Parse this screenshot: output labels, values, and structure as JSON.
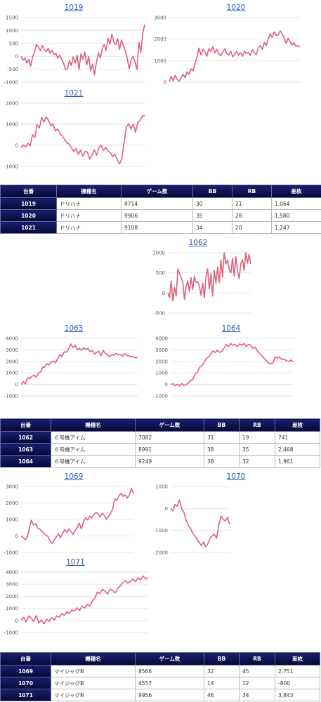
{
  "colors": {
    "line": "#e0607a",
    "header_bg": "#0d1250",
    "title_link": "#2a5db0",
    "negative": "#d11a1a"
  },
  "groups": [
    {
      "charts": [
        {
          "chart_data": {
            "type": "line",
            "title": "1019",
            "ylim": [
              -1000,
              1500
            ],
            "yticks": [
              -1000,
              -500,
              0,
              500,
              1000,
              1500
            ],
            "values": [
              0,
              -150,
              -60,
              -260,
              -120,
              -380,
              -20,
              180,
              460,
              360,
              210,
              420,
              260,
              180,
              310,
              120,
              240,
              70,
              120,
              -80,
              50,
              -120,
              -260,
              -520,
              -480,
              -160,
              -360,
              -20,
              -260,
              40,
              -500,
              100,
              -120,
              160,
              -340,
              0,
              -560,
              -300,
              -720,
              -220,
              130,
              -60,
              290,
              460,
              220,
              700,
              470,
              860,
              560,
              460,
              680,
              270,
              640,
              400,
              200,
              -100,
              -480,
              -130,
              0,
              -220,
              -520,
              540,
              140,
              900,
              1230
            ]
          }
        },
        {
          "chart_data": {
            "type": "line",
            "title": "1020",
            "ylim": [
              0,
              3000
            ],
            "yticks": [
              0,
              1000,
              2000,
              3000
            ],
            "values": [
              20,
              260,
              60,
              320,
              120,
              50,
              200,
              370,
              210,
              480,
              370,
              620,
              520,
              860,
              1160,
              1580,
              1260,
              1540,
              1400,
              1200,
              1560,
              1420,
              1640,
              1360,
              1520,
              1310,
              1220,
              1410,
              1550,
              1340,
              1250,
              1440,
              1180,
              1290,
              1420,
              1260,
              1370,
              1200,
              1440,
              1320,
              1380,
              1240,
              1510,
              1360,
              1280,
              1600,
              1700,
              1520,
              1840,
              1700,
              2010,
              2250,
              2080,
              2330,
              2160,
              2190,
              2380,
              2260,
              2050,
              1800,
              2040,
              1880,
              1720,
              1840,
              1660,
              1700,
              1620
            ]
          }
        },
        {
          "chart_data": {
            "type": "line",
            "title": "1021",
            "ylim": [
              -1000,
              2000
            ],
            "yticks": [
              -1000,
              0,
              1000,
              2000
            ],
            "values": [
              -120,
              20,
              -80,
              100,
              -20,
              500,
              380,
              980,
              820,
              1320,
              1100,
              1350,
              1190,
              920,
              1020,
              680,
              780,
              560,
              440,
              290,
              120,
              60,
              -120,
              -300,
              -150,
              -430,
              -220,
              -520,
              -280,
              -330,
              -660,
              -460,
              -210,
              -470,
              -110,
              0,
              -250,
              -100,
              -280,
              -350,
              -540,
              -420,
              -680,
              -880,
              -640,
              140,
              880,
              1020,
              780,
              1010,
              620,
              1100,
              1180,
              1380,
              1420
            ]
          }
        }
      ],
      "table": {
        "headers": [
          "台番",
          "機種名",
          "ゲーム数",
          "BB",
          "RB",
          "差枚"
        ],
        "rows": [
          {
            "id": "1019",
            "machine": "ドリハナ",
            "games": "8714",
            "bb": "30",
            "rb": "21",
            "diff": "1,064",
            "negative": false
          },
          {
            "id": "1020",
            "machine": "ドリハナ",
            "games": "9906",
            "bb": "35",
            "rb": "28",
            "diff": "1,580",
            "negative": false
          },
          {
            "id": "1021",
            "machine": "ドリハナ",
            "games": "9108",
            "bb": "34",
            "rb": "20",
            "diff": "1,247",
            "negative": false
          }
        ]
      }
    },
    {
      "charts": [
        {
          "chart_data": {
            "type": "line",
            "title": "1062",
            "ylim": [
              -500,
              1000
            ],
            "yticks": [
              -500,
              0,
              500,
              1000
            ],
            "values": [
              0,
              -120,
              300,
              -200,
              140,
              -80,
              600,
              480,
              380,
              280,
              -160,
              160,
              300,
              40,
              380,
              80,
              420,
              260,
              280,
              180,
              -60,
              240,
              -120,
              400,
              600,
              100,
              480,
              -80,
              560,
              240,
              640,
              260,
              820,
              400,
              1000,
              720,
              820,
              580,
              500,
              860,
              420,
              900,
              540,
              360,
              720,
              820,
              560,
              1000,
              740,
              960,
              720
            ]
          }
        },
        {
          "chart_data": {
            "type": "line",
            "title": "1063",
            "ylim": [
              -1000,
              4000
            ],
            "yticks": [
              -1000,
              0,
              1000,
              2000,
              3000,
              4000
            ],
            "values": [
              0,
              240,
              50,
              580,
              500,
              700,
              820,
              620,
              990,
              1080,
              1480,
              1520,
              1820,
              1690,
              1950,
              2040,
              1880,
              2270,
              2580,
              2420,
              2850,
              2780,
              3050,
              3520,
              3210,
              3400,
              3020,
              3130,
              2980,
              3180,
              3050,
              3120,
              2840,
              2930,
              2660,
              2760,
              2880,
              2490,
              2950,
              2700,
              2550,
              2400,
              2610,
              2530,
              2700,
              2570,
              2610,
              2440,
              2680,
              2510,
              2480,
              2400,
              2420,
              2300,
              2350
            ]
          }
        },
        {
          "chart_data": {
            "type": "line",
            "title": "1064",
            "ylim": [
              -1000,
              4000
            ],
            "yticks": [
              -1000,
              0,
              1000,
              2000,
              3000,
              4000
            ],
            "values": [
              0,
              60,
              -120,
              20,
              -140,
              80,
              -100,
              -20,
              120,
              380,
              420,
              880,
              1040,
              1480,
              1620,
              1900,
              2240,
              2380,
              2640,
              2900,
              2780,
              2960,
              2780,
              2880,
              3150,
              3480,
              3280,
              3560,
              3380,
              3490,
              3280,
              3520,
              3420,
              3550,
              3300,
              3480,
              3400,
              3120,
              3240,
              2900,
              2700,
              2500,
              2280,
              2080,
              1880,
              1780,
              1860,
              2400,
              2280,
              2380,
              2160,
              2220,
              2060,
              1980,
              2120,
              1960
            ]
          }
        }
      ],
      "table": {
        "headers": [
          "台番",
          "機種名",
          "ゲーム数",
          "BB",
          "RB",
          "差枚"
        ],
        "rows": [
          {
            "id": "1062",
            "machine": "６号機アイム",
            "games": "7082",
            "bb": "31",
            "rb": "19",
            "diff": "741",
            "negative": false
          },
          {
            "id": "1063",
            "machine": "６号機アイム",
            "games": "8991",
            "bb": "38",
            "rb": "35",
            "diff": "2,468",
            "negative": false
          },
          {
            "id": "1064",
            "machine": "６号機アイム",
            "games": "9249",
            "bb": "38",
            "rb": "32",
            "diff": "1,961",
            "negative": false
          }
        ]
      }
    },
    {
      "charts": [
        {
          "chart_data": {
            "type": "line",
            "title": "1069",
            "ylim": [
              -1000,
              3000
            ],
            "yticks": [
              -1000,
              0,
              1000,
              2000,
              3000
            ],
            "values": [
              0,
              -100,
              -220,
              -60,
              520,
              960,
              660,
              740,
              480,
              420,
              280,
              130,
              60,
              -40,
              -320,
              -460,
              -220,
              -40,
              120,
              -100,
              180,
              380,
              220,
              420,
              260,
              100,
              340,
              520,
              780,
              420,
              880,
              1100,
              980,
              1200,
              1080,
              1300,
              1420,
              1340,
              1160,
              1400,
              1240,
              1020,
              1180,
              1360,
              1640,
              2240,
              2160,
              2420,
              2580,
              2400,
              2500,
              2300,
              2480,
              2880,
              2560
            ]
          }
        },
        {
          "chart_data": {
            "type": "line",
            "title": "1070",
            "ylim": [
              -2000,
              1000
            ],
            "yticks": [
              -2000,
              -1000,
              0,
              1000
            ],
            "values": [
              0,
              -100,
              180,
              100,
              380,
              0,
              -160,
              -520,
              -760,
              -900,
              -1100,
              -1240,
              -1380,
              -1540,
              -1680,
              -1520,
              -1740,
              -1600,
              -1360,
              -1240,
              -1160,
              -1360,
              -760,
              -340,
              -500,
              -560,
              -400,
              -720
            ]
          }
        },
        {
          "chart_data": {
            "type": "line",
            "title": "1071",
            "ylim": [
              -1000,
              4000
            ],
            "yticks": [
              -1000,
              0,
              1000,
              2000,
              3000,
              4000
            ],
            "values": [
              0,
              260,
              -120,
              380,
              180,
              -100,
              420,
              -220,
              40,
              -280,
              100,
              -80,
              220,
              40,
              380,
              260,
              560,
              420,
              720,
              580,
              880,
              760,
              1040,
              820,
              1180,
              1020,
              1340,
              1180,
              1620,
              1840,
              2360,
              2220,
              2600,
              2420,
              2180,
              2600,
              2480,
              2280,
              2640,
              2860,
              3140,
              3320,
              3080,
              3240,
              3440,
              3200,
              3540,
              3360,
              3680,
              3420,
              3560
            ]
          }
        }
      ],
      "table": {
        "headers": [
          "台番",
          "機種名",
          "ゲーム数",
          "BB",
          "RB",
          "差枚"
        ],
        "rows": [
          {
            "id": "1069",
            "machine": "マイジャグⅢ",
            "games": "8566",
            "bb": "32",
            "rb": "45",
            "diff": "2,751",
            "negative": false
          },
          {
            "id": "1070",
            "machine": "マイジャグⅢ",
            "games": "4557",
            "bb": "14",
            "rb": "12",
            "diff": "-800",
            "negative": true
          },
          {
            "id": "1071",
            "machine": "マイジャグⅢ",
            "games": "9956",
            "bb": "46",
            "rb": "34",
            "diff": "3,843",
            "negative": false
          }
        ]
      }
    }
  ]
}
